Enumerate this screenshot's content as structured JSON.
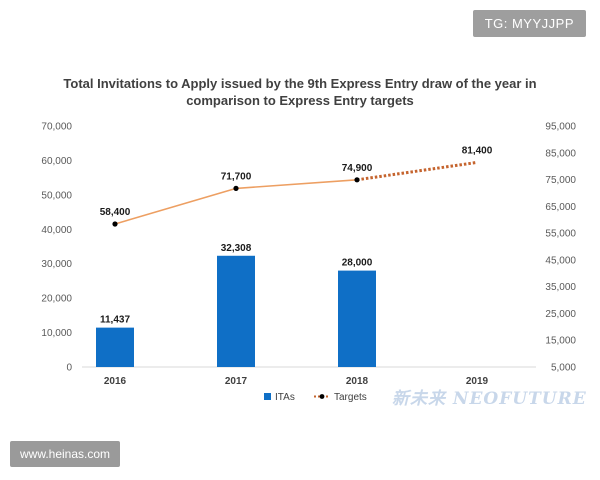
{
  "badges": {
    "telegram": "TG: MYYJJPP",
    "website": "www.heinas.com"
  },
  "watermark": "新未来 NEOFUTURE",
  "colors": {
    "bar": "#0f6fc6",
    "line": "#ed9f62",
    "line_dotted": "#c5642e",
    "marker": "#000000"
  },
  "chart_data": {
    "type": "bar",
    "title": "Total Invitations to Apply issued by the 9th Express Entry draw of the year in comparison to Express Entry targets",
    "categories": [
      "2016",
      "2017",
      "2018",
      "2019"
    ],
    "series": [
      {
        "name": "ITAs",
        "type": "bar",
        "axis": "left",
        "values": [
          11437,
          32308,
          28000,
          null
        ],
        "labels": [
          "11,437",
          "32,308",
          "28,000",
          ""
        ]
      },
      {
        "name": "Targets",
        "type": "line",
        "axis": "right",
        "values": [
          58400,
          71700,
          74900,
          81400
        ],
        "labels": [
          "58,400",
          "71,700",
          "74,900",
          "81,400"
        ],
        "dotted_from_index": 2
      }
    ],
    "y_left": {
      "min": 0,
      "max": 70000,
      "step": 10000,
      "ticks": [
        "0",
        "10,000",
        "20,000",
        "30,000",
        "40,000",
        "50,000",
        "60,000",
        "70,000"
      ]
    },
    "y_right": {
      "min": 5000,
      "max": 95000,
      "step": 10000,
      "ticks": [
        "5,000",
        "15,000",
        "25,000",
        "35,000",
        "45,000",
        "55,000",
        "65,000",
        "75,000",
        "85,000",
        "95,000"
      ]
    },
    "legend": [
      "ITAs",
      "Targets"
    ],
    "legend_position": "bottom",
    "grid": false
  }
}
